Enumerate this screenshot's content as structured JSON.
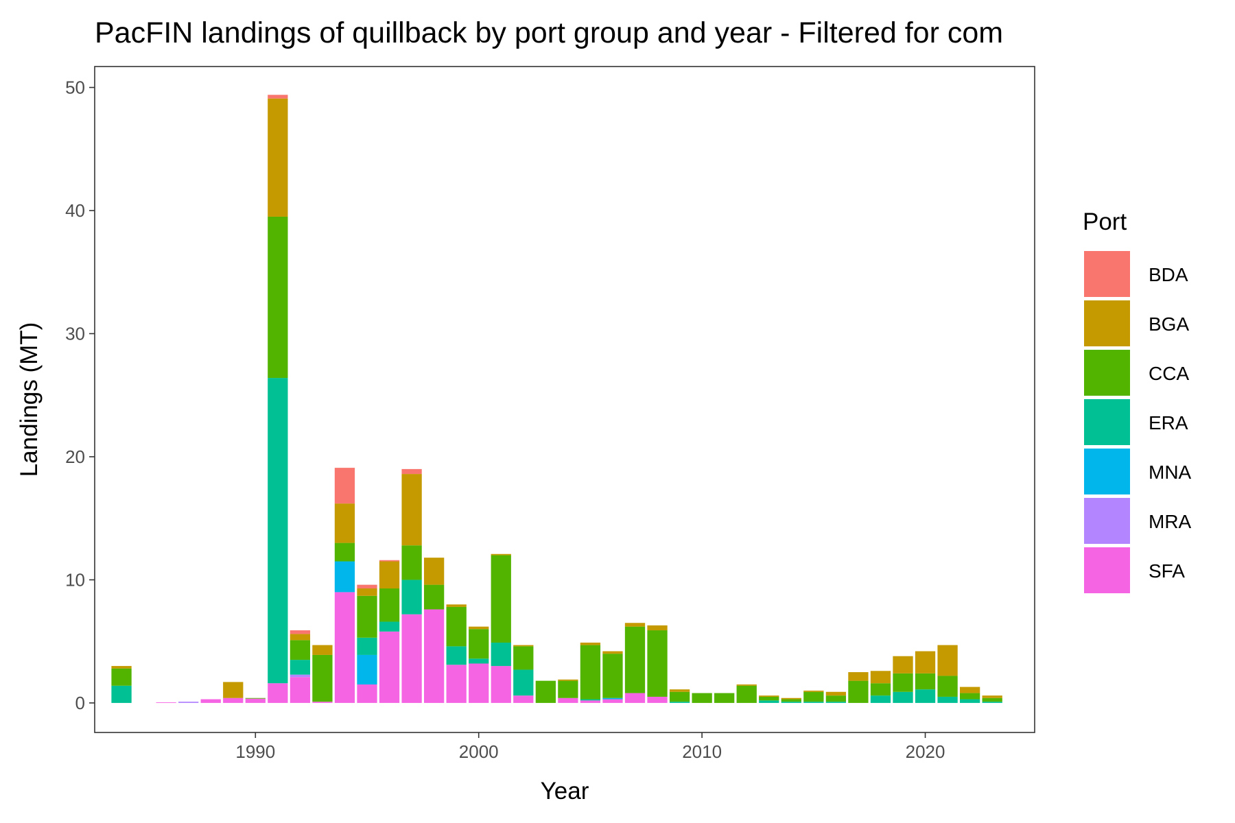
{
  "chart_data": {
    "type": "bar",
    "stacked": true,
    "title": "PacFIN landings of quillback by port group and year - Filtered for com",
    "xlabel": "Year",
    "ylabel": "Landings (MT)",
    "xlim": [
      1982.8,
      2024.9
    ],
    "ylim": [
      -2.4,
      51.7
    ],
    "x_ticks": [
      1990,
      2000,
      2010,
      2020
    ],
    "y_ticks": [
      0,
      10,
      20,
      30,
      40,
      50
    ],
    "grid": false,
    "legend": {
      "title": "Port",
      "position": "right"
    },
    "series": [
      {
        "name": "SFA",
        "color": "#F564E3"
      },
      {
        "name": "MRA",
        "color": "#B385FF"
      },
      {
        "name": "MNA",
        "color": "#00B6EB"
      },
      {
        "name": "ERA",
        "color": "#00C094"
      },
      {
        "name": "CCA",
        "color": "#53B400"
      },
      {
        "name": "BGA",
        "color": "#C49A00"
      },
      {
        "name": "BDA",
        "color": "#F8766D"
      }
    ],
    "legend_order": [
      "BDA",
      "BGA",
      "CCA",
      "ERA",
      "MNA",
      "MRA",
      "SFA"
    ],
    "data": [
      {
        "year": 1984,
        "values": {
          "ERA": 1.4,
          "CCA": 1.4,
          "BGA": 0.2
        }
      },
      {
        "year": 1986,
        "values": {
          "SFA": 0.05
        }
      },
      {
        "year": 1987,
        "values": {
          "MRA": 0.1
        }
      },
      {
        "year": 1988,
        "values": {
          "SFA": 0.3
        }
      },
      {
        "year": 1989,
        "values": {
          "SFA": 0.4,
          "BGA": 1.3
        }
      },
      {
        "year": 1990,
        "values": {
          "SFA": 0.35,
          "CCA": 0.05
        }
      },
      {
        "year": 1991,
        "values": {
          "SFA": 1.6,
          "ERA": 24.8,
          "CCA": 13.1,
          "BGA": 9.6,
          "BDA": 0.3
        }
      },
      {
        "year": 1992,
        "values": {
          "SFA": 2.1,
          "MRA": 0.2,
          "ERA": 1.2,
          "CCA": 1.6,
          "BGA": 0.5,
          "BDA": 0.3
        }
      },
      {
        "year": 1993,
        "values": {
          "SFA": 0.1,
          "CCA": 3.8,
          "BGA": 0.8
        }
      },
      {
        "year": 1994,
        "values": {
          "SFA": 9.0,
          "MNA": 2.5,
          "CCA": 1.5,
          "BGA": 3.2,
          "BDA": 2.9
        }
      },
      {
        "year": 1995,
        "values": {
          "SFA": 1.5,
          "MNA": 2.4,
          "ERA": 1.4,
          "CCA": 3.4,
          "BGA": 0.6,
          "BDA": 0.3
        }
      },
      {
        "year": 1996,
        "values": {
          "SFA": 5.8,
          "ERA": 0.8,
          "CCA": 2.7,
          "BGA": 2.2,
          "BDA": 0.1
        }
      },
      {
        "year": 1997,
        "values": {
          "SFA": 7.2,
          "ERA": 2.8,
          "CCA": 2.8,
          "BGA": 5.8,
          "BDA": 0.4
        }
      },
      {
        "year": 1998,
        "values": {
          "SFA": 7.6,
          "CCA": 2.0,
          "BGA": 2.2
        }
      },
      {
        "year": 1999,
        "values": {
          "SFA": 3.1,
          "ERA": 1.5,
          "CCA": 3.2,
          "BGA": 0.2
        }
      },
      {
        "year": 2000,
        "values": {
          "SFA": 3.2,
          "ERA": 0.4,
          "CCA": 2.4,
          "BGA": 0.2
        }
      },
      {
        "year": 2001,
        "values": {
          "SFA": 3.0,
          "ERA": 1.9,
          "CCA": 7.1,
          "BGA": 0.1
        }
      },
      {
        "year": 2002,
        "values": {
          "SFA": 0.6,
          "ERA": 2.1,
          "CCA": 1.9,
          "BGA": 0.1
        }
      },
      {
        "year": 2003,
        "values": {
          "CCA": 1.8
        }
      },
      {
        "year": 2004,
        "values": {
          "SFA": 0.4,
          "CCA": 1.4,
          "BGA": 0.1
        }
      },
      {
        "year": 2005,
        "values": {
          "SFA": 0.2,
          "ERA": 0.1,
          "CCA": 4.4,
          "BGA": 0.2
        }
      },
      {
        "year": 2006,
        "values": {
          "SFA": 0.3,
          "MNA": 0.1,
          "CCA": 3.6,
          "BGA": 0.2
        }
      },
      {
        "year": 2007,
        "values": {
          "SFA": 0.8,
          "CCA": 5.4,
          "BGA": 0.3
        }
      },
      {
        "year": 2008,
        "values": {
          "SFA": 0.5,
          "CCA": 5.4,
          "BGA": 0.4
        }
      },
      {
        "year": 2009,
        "values": {
          "ERA": 0.1,
          "CCA": 0.8,
          "BGA": 0.2
        }
      },
      {
        "year": 2010,
        "values": {
          "CCA": 0.8
        }
      },
      {
        "year": 2011,
        "values": {
          "CCA": 0.8
        }
      },
      {
        "year": 2012,
        "values": {
          "CCA": 1.4,
          "BGA": 0.1
        }
      },
      {
        "year": 2013,
        "values": {
          "ERA": 0.2,
          "CCA": 0.3,
          "BGA": 0.1
        }
      },
      {
        "year": 2014,
        "values": {
          "ERA": 0.1,
          "CCA": 0.2,
          "BGA": 0.1
        }
      },
      {
        "year": 2015,
        "values": {
          "ERA": 0.1,
          "CCA": 0.8,
          "BGA": 0.1
        }
      },
      {
        "year": 2016,
        "values": {
          "ERA": 0.1,
          "CCA": 0.5,
          "BGA": 0.3
        }
      },
      {
        "year": 2017,
        "values": {
          "CCA": 1.8,
          "BGA": 0.7
        }
      },
      {
        "year": 2018,
        "values": {
          "ERA": 0.6,
          "CCA": 1.0,
          "BGA": 1.0
        }
      },
      {
        "year": 2019,
        "values": {
          "ERA": 0.9,
          "CCA": 1.5,
          "BGA": 1.4
        }
      },
      {
        "year": 2020,
        "values": {
          "ERA": 1.1,
          "CCA": 1.3,
          "BGA": 1.8
        }
      },
      {
        "year": 2021,
        "values": {
          "ERA": 0.5,
          "CCA": 1.7,
          "BGA": 2.5
        }
      },
      {
        "year": 2022,
        "values": {
          "ERA": 0.3,
          "CCA": 0.5,
          "BGA": 0.5
        }
      },
      {
        "year": 2023,
        "values": {
          "ERA": 0.1,
          "CCA": 0.3,
          "BGA": 0.2
        }
      }
    ]
  }
}
